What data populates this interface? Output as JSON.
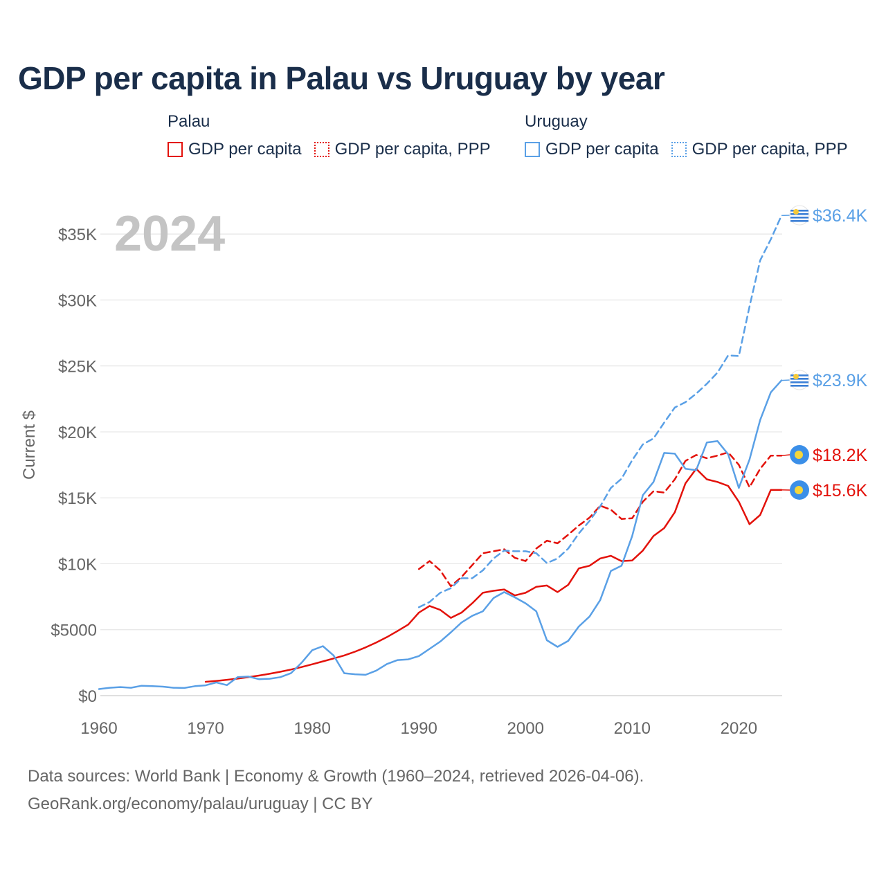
{
  "title": "GDP per capita in Palau vs Uruguay by year",
  "legend": {
    "groups": [
      {
        "name": "Palau",
        "items": [
          {
            "label": "GDP per capita",
            "color": "#e3120b",
            "style": "solid"
          },
          {
            "label": "GDP per capita, PPP",
            "color": "#e3120b",
            "style": "dotted"
          }
        ]
      },
      {
        "name": "Uruguay",
        "items": [
          {
            "label": "GDP per capita",
            "color": "#5aa0e6",
            "style": "solid"
          },
          {
            "label": "GDP per capita, PPP",
            "color": "#5aa0e6",
            "style": "dotted"
          }
        ]
      }
    ]
  },
  "footer": {
    "line1": "Data sources: World Bank | Economy & Growth (1960–2024, retrieved 2026-04-06).",
    "line2": "GeoRank.org/economy/palau/uruguay | CC BY"
  },
  "chart_data": {
    "type": "line",
    "year_watermark": "2024",
    "ylabel": "Current $",
    "xlim": [
      1960,
      2024
    ],
    "ylim": [
      0,
      37000
    ],
    "grid": true,
    "x_ticks": [
      1960,
      1970,
      1980,
      1990,
      2000,
      2010,
      2020
    ],
    "x_tick_labels": [
      "1960",
      "1970",
      "1980",
      "1990",
      "2000",
      "2010",
      "2020"
    ],
    "y_ticks": [
      0,
      5000,
      10000,
      15000,
      20000,
      25000,
      30000,
      35000
    ],
    "y_tick_labels": [
      "$0",
      "$5000",
      "$10K",
      "$15K",
      "$20K",
      "$25K",
      "$30K",
      "$35K"
    ],
    "series": [
      {
        "name": "Palau GDP per capita",
        "country": "Palau",
        "color": "#e3120b",
        "dash": "solid",
        "end_label": "$15.6K",
        "x": [
          1970,
          1971,
          1972,
          1973,
          1974,
          1975,
          1976,
          1977,
          1978,
          1979,
          1980,
          1981,
          1982,
          1983,
          1984,
          1985,
          1986,
          1987,
          1988,
          1989,
          1990,
          1991,
          1992,
          1993,
          1994,
          1995,
          1996,
          1997,
          1998,
          1999,
          2000,
          2001,
          2002,
          2003,
          2004,
          2005,
          2006,
          2007,
          2008,
          2009,
          2010,
          2011,
          2012,
          2013,
          2014,
          2015,
          2016,
          2017,
          2018,
          2019,
          2020,
          2021,
          2022,
          2023,
          2024
        ],
        "y": [
          1050,
          1120,
          1200,
          1290,
          1400,
          1520,
          1660,
          1810,
          1980,
          2170,
          2380,
          2600,
          2820,
          3050,
          3330,
          3660,
          4030,
          4440,
          4900,
          5390,
          6300,
          6800,
          6500,
          5900,
          6300,
          7000,
          7800,
          7950,
          8050,
          7600,
          7800,
          8250,
          8350,
          7850,
          8400,
          9650,
          9850,
          10400,
          10600,
          10200,
          10250,
          11000,
          12100,
          12700,
          13900,
          16100,
          17200,
          16400,
          16200,
          15900,
          14700,
          13000,
          13700,
          15600,
          15600
        ]
      },
      {
        "name": "Palau GDP per capita, PPP",
        "country": "Palau",
        "color": "#e3120b",
        "dash": "dashed",
        "end_label": "$18.2K",
        "x": [
          1990,
          1991,
          1992,
          1993,
          1994,
          1995,
          1996,
          1997,
          1998,
          1999,
          2000,
          2001,
          2002,
          2003,
          2004,
          2005,
          2006,
          2007,
          2008,
          2009,
          2010,
          2011,
          2012,
          2013,
          2014,
          2015,
          2016,
          2017,
          2018,
          2019,
          2020,
          2021,
          2022,
          2023,
          2024
        ],
        "y": [
          9600,
          10200,
          9500,
          8300,
          9000,
          9900,
          10800,
          10950,
          11100,
          10450,
          10200,
          11150,
          11750,
          11550,
          12200,
          12900,
          13500,
          14400,
          14100,
          13400,
          13450,
          14700,
          15500,
          15400,
          16400,
          17800,
          18250,
          18000,
          18200,
          18450,
          17500,
          15800,
          17200,
          18200,
          18200
        ]
      },
      {
        "name": "Uruguay GDP per capita",
        "country": "Uruguay",
        "color": "#5aa0e6",
        "dash": "solid",
        "end_label": "$23.9K",
        "x": [
          1960,
          1961,
          1962,
          1963,
          1964,
          1965,
          1966,
          1967,
          1968,
          1969,
          1970,
          1971,
          1972,
          1973,
          1974,
          1975,
          1976,
          1977,
          1978,
          1979,
          1980,
          1981,
          1982,
          1983,
          1984,
          1985,
          1986,
          1987,
          1988,
          1989,
          1990,
          1991,
          1992,
          1993,
          1994,
          1995,
          1996,
          1997,
          1998,
          1999,
          2000,
          2001,
          2002,
          2003,
          2004,
          2005,
          2006,
          2007,
          2008,
          2009,
          2010,
          2011,
          2012,
          2013,
          2014,
          2015,
          2016,
          2017,
          2018,
          2019,
          2020,
          2021,
          2022,
          2023,
          2024
        ],
        "y": [
          500,
          600,
          650,
          600,
          750,
          720,
          680,
          600,
          580,
          720,
          780,
          1000,
          800,
          1400,
          1450,
          1250,
          1280,
          1400,
          1700,
          2500,
          3450,
          3750,
          3050,
          1700,
          1620,
          1580,
          1900,
          2400,
          2700,
          2750,
          3000,
          3550,
          4100,
          4800,
          5550,
          6050,
          6400,
          7400,
          7850,
          7450,
          7000,
          6400,
          4200,
          3700,
          4150,
          5250,
          6000,
          7250,
          9450,
          9850,
          12100,
          15200,
          16200,
          18400,
          18350,
          17200,
          17100,
          19200,
          19300,
          18300,
          15750,
          17900,
          20900,
          23000,
          23900
        ]
      },
      {
        "name": "Uruguay GDP per capita, PPP",
        "country": "Uruguay",
        "color": "#5aa0e6",
        "dash": "dashed",
        "end_label": "$36.4K",
        "x": [
          1990,
          1991,
          1992,
          1993,
          1994,
          1995,
          1996,
          1997,
          1998,
          1999,
          2000,
          2001,
          2002,
          2003,
          2004,
          2005,
          2006,
          2007,
          2008,
          2009,
          2010,
          2011,
          2012,
          2013,
          2014,
          2015,
          2016,
          2017,
          2018,
          2019,
          2020,
          2021,
          2022,
          2023,
          2024
        ],
        "y": [
          6700,
          7100,
          7800,
          8150,
          8900,
          8900,
          9500,
          10400,
          11000,
          10950,
          10950,
          10800,
          10050,
          10400,
          11150,
          12300,
          13250,
          14350,
          15750,
          16450,
          17850,
          19050,
          19500,
          20700,
          21850,
          22250,
          22900,
          23650,
          24500,
          25800,
          25750,
          29500,
          33000,
          34600,
          36400
        ]
      }
    ]
  }
}
